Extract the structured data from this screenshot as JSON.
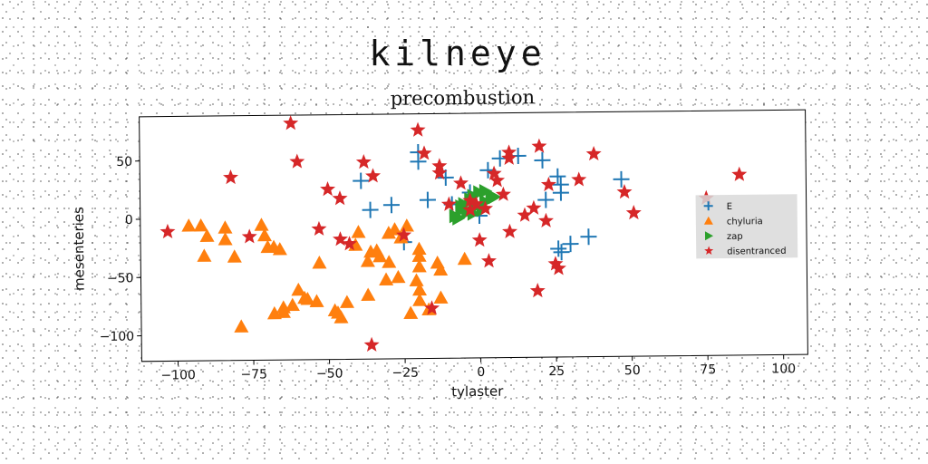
{
  "figure": {
    "suptitle": "kilneye"
  },
  "chart_data": {
    "type": "scatter",
    "title": "precombustion",
    "xlabel": "tylaster",
    "ylabel": "mesenteries",
    "xlim": [
      -112,
      108
    ],
    "ylim": [
      -122,
      88
    ],
    "xticks": [
      -100,
      -75,
      -50,
      -25,
      0,
      25,
      50,
      75,
      100
    ],
    "yticks": [
      50,
      0,
      -50,
      -100
    ],
    "grid": false,
    "legend_position": "center-right",
    "series": [
      {
        "name": "E",
        "marker": "plus",
        "color": "#1f77b4",
        "points": [
          [
            -39,
            31
          ],
          [
            -36,
            6
          ],
          [
            -29,
            10
          ],
          [
            -25,
            -22
          ],
          [
            -20,
            55
          ],
          [
            -20,
            47
          ],
          [
            -17,
            14
          ],
          [
            -11,
            33
          ],
          [
            -9,
            10
          ],
          [
            -3,
            20
          ],
          [
            0,
            0
          ],
          [
            3,
            39
          ],
          [
            7,
            49
          ],
          [
            13,
            51
          ],
          [
            21,
            47
          ],
          [
            22,
            13
          ],
          [
            26,
            33
          ],
          [
            27,
            26
          ],
          [
            27,
            19
          ],
          [
            26,
            -29
          ],
          [
            27,
            -32
          ],
          [
            30,
            -25
          ],
          [
            36,
            -19
          ],
          [
            47,
            30
          ]
        ]
      },
      {
        "name": "chyluria",
        "marker": "triangle-up",
        "color": "#ff7f0e",
        "points": [
          [
            -96,
            -6
          ],
          [
            -92,
            -6
          ],
          [
            -90,
            -15
          ],
          [
            -91,
            -32
          ],
          [
            -84,
            -8
          ],
          [
            -84,
            -18
          ],
          [
            -81,
            -33
          ],
          [
            -79,
            -93
          ],
          [
            -72,
            -6
          ],
          [
            -71,
            -15
          ],
          [
            -70,
            -25
          ],
          [
            -68,
            -82
          ],
          [
            -68,
            -25
          ],
          [
            -66,
            -27
          ],
          [
            -65,
            -77
          ],
          [
            -65,
            -81
          ],
          [
            -62,
            -75
          ],
          [
            -60,
            -62
          ],
          [
            -58,
            -69
          ],
          [
            -57,
            -70
          ],
          [
            -54,
            -72
          ],
          [
            -53,
            -39
          ],
          [
            -48,
            -80
          ],
          [
            -46,
            -86
          ],
          [
            -47,
            -82
          ],
          [
            -44,
            -73
          ],
          [
            -41,
            -24
          ],
          [
            -40,
            -13
          ],
          [
            -37,
            -67
          ],
          [
            -37,
            -38
          ],
          [
            -36,
            -30
          ],
          [
            -34,
            -29
          ],
          [
            -33,
            -34
          ],
          [
            -31,
            -54
          ],
          [
            -30,
            -14
          ],
          [
            -30,
            -39
          ],
          [
            -27,
            -52
          ],
          [
            -28,
            -11
          ],
          [
            -26,
            -18
          ],
          [
            -24,
            -8
          ],
          [
            -23,
            -83
          ],
          [
            -20,
            -72
          ],
          [
            -20,
            -63
          ],
          [
            -21,
            -55
          ],
          [
            -20,
            -43
          ],
          [
            -20,
            -34
          ],
          [
            -20,
            -28
          ],
          [
            -17,
            -80
          ],
          [
            -14,
            -40
          ],
          [
            -13,
            -46
          ],
          [
            -13,
            -70
          ],
          [
            -5,
            -37
          ]
        ]
      },
      {
        "name": "zap",
        "marker": "triangle-right",
        "color": "#2ca02c",
        "points": [
          [
            -8,
            0
          ],
          [
            -6,
            5
          ],
          [
            -5,
            10
          ],
          [
            -3,
            14
          ],
          [
            -2,
            17
          ],
          [
            0,
            20
          ],
          [
            2,
            21
          ],
          [
            4,
            17
          ],
          [
            -7,
            -2
          ],
          [
            -4,
            3
          ],
          [
            -1,
            8
          ],
          [
            2,
            12
          ],
          [
            5,
            16
          ],
          [
            -6,
            8
          ],
          [
            -2,
            2
          ],
          [
            1,
            5
          ]
        ]
      },
      {
        "name": "disentranced",
        "marker": "star",
        "color": "#d62728",
        "points": [
          [
            -103,
            -11
          ],
          [
            -82,
            35
          ],
          [
            -76,
            -16
          ],
          [
            -62,
            81
          ],
          [
            -60,
            48
          ],
          [
            -53,
            -10
          ],
          [
            -50,
            24
          ],
          [
            -46,
            16
          ],
          [
            -46,
            -19
          ],
          [
            -43,
            -23
          ],
          [
            -38,
            47
          ],
          [
            -35,
            35
          ],
          [
            -36,
            -110
          ],
          [
            -25,
            -16
          ],
          [
            -20,
            74
          ],
          [
            -18,
            54
          ],
          [
            -16,
            -79
          ],
          [
            -13,
            43
          ],
          [
            -13,
            37
          ],
          [
            -10,
            10
          ],
          [
            -6,
            28
          ],
          [
            -3,
            13
          ],
          [
            -1,
            10
          ],
          [
            -3,
            5
          ],
          [
            2,
            6
          ],
          [
            0,
            -21
          ],
          [
            3,
            -39
          ],
          [
            5,
            36
          ],
          [
            6,
            30
          ],
          [
            8,
            18
          ],
          [
            10,
            54
          ],
          [
            10,
            49
          ],
          [
            10,
            -14
          ],
          [
            15,
            0
          ],
          [
            18,
            6
          ],
          [
            19,
            -65
          ],
          [
            20,
            59
          ],
          [
            22,
            -5
          ],
          [
            23,
            26
          ],
          [
            25,
            -42
          ],
          [
            26,
            -46
          ],
          [
            33,
            30
          ],
          [
            38,
            52
          ],
          [
            48,
            19
          ],
          [
            51,
            1
          ],
          [
            86,
            33
          ],
          [
            75,
            13
          ]
        ]
      }
    ]
  }
}
